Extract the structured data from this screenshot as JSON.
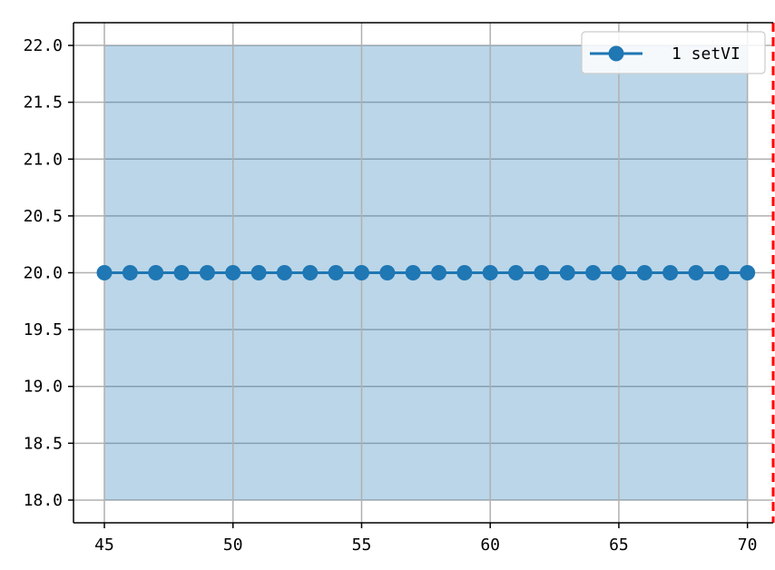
{
  "chart_data": {
    "type": "line",
    "title": "",
    "xlabel": "",
    "ylabel": "",
    "xlim": [
      43.8,
      71.0
    ],
    "ylim": [
      17.8,
      22.2
    ],
    "xticks": [
      45,
      50,
      55,
      60,
      65,
      70
    ],
    "xtick_labels": [
      "45",
      "50",
      "55",
      "60",
      "65",
      "70"
    ],
    "yticks": [
      18.0,
      18.5,
      19.0,
      19.5,
      20.0,
      20.5,
      21.0,
      21.5,
      22.0
    ],
    "ytick_labels": [
      "18.0",
      "18.5",
      "19.0",
      "19.5",
      "20.0",
      "20.5",
      "21.0",
      "21.5",
      "22.0"
    ],
    "grid": true,
    "legend_position": "top-right",
    "series": [
      {
        "name": "1 setVI",
        "color": "#1f77b4",
        "marker": "circle",
        "x": [
          45,
          46,
          47,
          48,
          49,
          50,
          51,
          52,
          53,
          54,
          55,
          56,
          57,
          58,
          59,
          60,
          61,
          62,
          63,
          64,
          65,
          66,
          67,
          68,
          69,
          70
        ],
        "y": [
          20,
          20,
          20,
          20,
          20,
          20,
          20,
          20,
          20,
          20,
          20,
          20,
          20,
          20,
          20,
          20,
          20,
          20,
          20,
          20,
          20,
          20,
          20,
          20,
          20,
          20
        ]
      }
    ],
    "shaded_band": {
      "x": [
        45,
        70
      ],
      "y": [
        18.0,
        22.0
      ],
      "color": "#1f77b4",
      "opacity": 0.3
    },
    "vertical_line": {
      "x": 71,
      "color": "#ff0000",
      "style": "dashed"
    }
  }
}
